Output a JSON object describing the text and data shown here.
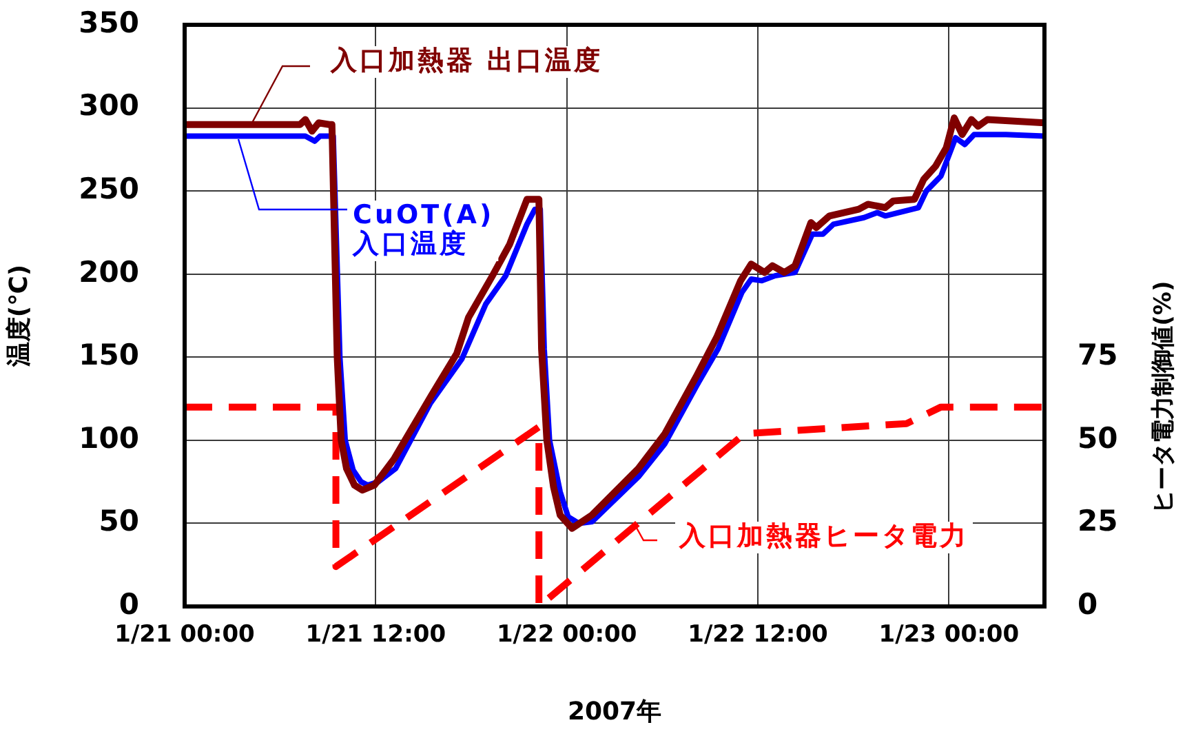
{
  "chart_data": {
    "type": "line",
    "xlabel": "2007年",
    "ylabel": "温度(℃)",
    "y2label": "ヒータ電力制御値(%)",
    "xlim": [
      "2007-01-21T00:00",
      "2007-01-23T06:00"
    ],
    "xticks": [
      {
        "value": "2007-01-21T00:00",
        "label": "1/21 00:00"
      },
      {
        "value": "2007-01-21T12:00",
        "label": "1/21 12:00"
      },
      {
        "value": "2007-01-22T00:00",
        "label": "1/22 00:00"
      },
      {
        "value": "2007-01-22T12:00",
        "label": "1/22 12:00"
      },
      {
        "value": "2007-01-23T00:00",
        "label": "1/23 00:00"
      }
    ],
    "ylim": [
      0,
      350
    ],
    "yticks": [
      0,
      50,
      100,
      150,
      200,
      250,
      300,
      350
    ],
    "y2lim": [
      0,
      175
    ],
    "y2ticks": [
      0,
      25,
      50,
      75
    ],
    "grid": true,
    "series": [
      {
        "name": "入口加熱器 出口温度",
        "color": "#800000",
        "x": [
          "2007-01-21T00:00",
          "2007-01-21T07:15",
          "2007-01-21T07:35",
          "2007-01-21T08:00",
          "2007-01-21T08:25",
          "2007-01-21T09:05",
          "2007-01-21T09:15",
          "2007-01-21T09:35",
          "2007-01-21T09:50",
          "2007-01-21T10:10",
          "2007-01-21T10:40",
          "2007-01-21T11:10",
          "2007-01-21T11:55",
          "2007-01-21T13:10",
          "2007-01-21T15:30",
          "2007-01-21T17:05",
          "2007-01-21T17:50",
          "2007-01-21T19:20",
          "2007-01-21T20:25",
          "2007-01-21T21:30",
          "2007-01-21T22:15",
          "2007-01-21T22:25",
          "2007-01-21T22:45",
          "2007-01-21T23:10",
          "2007-01-21T23:35",
          "2007-01-22T00:20",
          "2007-01-22T01:35",
          "2007-01-22T04:30",
          "2007-01-22T06:10",
          "2007-01-22T08:10",
          "2007-01-22T09:25",
          "2007-01-22T10:55",
          "2007-01-22T11:35",
          "2007-01-22T12:25",
          "2007-01-22T12:55",
          "2007-01-22T13:40",
          "2007-01-22T14:20",
          "2007-01-22T15:20",
          "2007-01-22T15:40",
          "2007-01-22T16:30",
          "2007-01-22T18:20",
          "2007-01-22T18:55",
          "2007-01-22T20:00",
          "2007-01-22T20:30",
          "2007-01-22T21:50",
          "2007-01-22T22:25",
          "2007-01-22T23:10",
          "2007-01-22T23:50",
          "2007-01-23T00:20",
          "2007-01-23T00:50",
          "2007-01-23T01:25",
          "2007-01-23T01:50",
          "2007-01-23T02:25",
          "2007-01-23T06:00"
        ],
        "values": [
          290,
          290,
          293,
          286,
          291,
          290,
          290,
          150,
          100,
          83,
          73,
          70,
          73,
          89,
          127,
          152,
          174,
          199,
          218,
          245,
          245,
          155,
          100,
          72,
          55,
          47,
          55,
          83,
          104,
          139,
          162,
          196,
          206,
          201,
          205,
          201,
          205,
          231,
          228,
          235,
          239,
          242,
          240,
          244,
          245,
          257,
          265,
          276,
          294,
          284,
          293,
          289,
          293,
          291
        ]
      },
      {
        "name": "CuOT(A) 入口温度",
        "color": "#0000ff",
        "x": [
          "2007-01-21T00:00",
          "2007-01-21T07:35",
          "2007-01-21T08:10",
          "2007-01-21T08:30",
          "2007-01-21T09:10",
          "2007-01-21T09:20",
          "2007-01-21T09:45",
          "2007-01-21T10:05",
          "2007-01-21T10:35",
          "2007-01-21T11:05",
          "2007-01-21T11:30",
          "2007-01-21T12:10",
          "2007-01-21T13:15",
          "2007-01-21T15:25",
          "2007-01-21T17:25",
          "2007-01-21T18:55",
          "2007-01-21T20:10",
          "2007-01-21T21:30",
          "2007-01-21T22:00",
          "2007-01-21T22:20",
          "2007-01-21T22:35",
          "2007-01-21T22:55",
          "2007-01-21T23:35",
          "2007-01-22T00:05",
          "2007-01-22T00:45",
          "2007-01-22T01:35",
          "2007-01-22T04:30",
          "2007-01-22T06:10",
          "2007-01-22T08:10",
          "2007-01-22T09:30",
          "2007-01-22T11:00",
          "2007-01-22T11:35",
          "2007-01-22T12:15",
          "2007-01-22T13:05",
          "2007-01-22T14:20",
          "2007-01-22T15:25",
          "2007-01-22T16:05",
          "2007-01-22T16:45",
          "2007-01-22T18:40",
          "2007-01-22T19:30",
          "2007-01-22T20:00",
          "2007-01-22T22:05",
          "2007-01-22T22:35",
          "2007-01-22T23:30",
          "2007-01-23T00:25",
          "2007-01-23T01:00",
          "2007-01-23T01:35",
          "2007-01-23T03:35",
          "2007-01-23T06:00"
        ],
        "values": [
          283,
          283,
          280,
          283,
          283,
          283,
          150,
          100,
          82,
          75,
          73,
          75,
          83,
          122,
          149,
          182,
          199,
          230,
          239,
          239,
          155,
          100,
          69,
          54,
          50,
          51,
          78,
          98,
          133,
          155,
          189,
          197,
          196,
          199,
          201,
          224,
          224,
          230,
          234,
          237,
          235,
          240,
          250,
          259,
          282,
          278,
          284,
          284,
          283
        ]
      },
      {
        "name": "入口加熱器ヒータ電力",
        "color": "#ff0000",
        "axis": "y2",
        "line_style": "dashed",
        "x": [
          "2007-01-21T00:00",
          "2007-01-21T09:30",
          "2007-01-21T09:30",
          "2007-01-21T22:15",
          "2007-01-21T22:15",
          "2007-01-22T11:10",
          "2007-01-22T21:20",
          "2007-01-22T23:30",
          "2007-01-23T06:00"
        ],
        "values": [
          60,
          60,
          12,
          54,
          0,
          52,
          55,
          60,
          60
        ]
      }
    ]
  }
}
